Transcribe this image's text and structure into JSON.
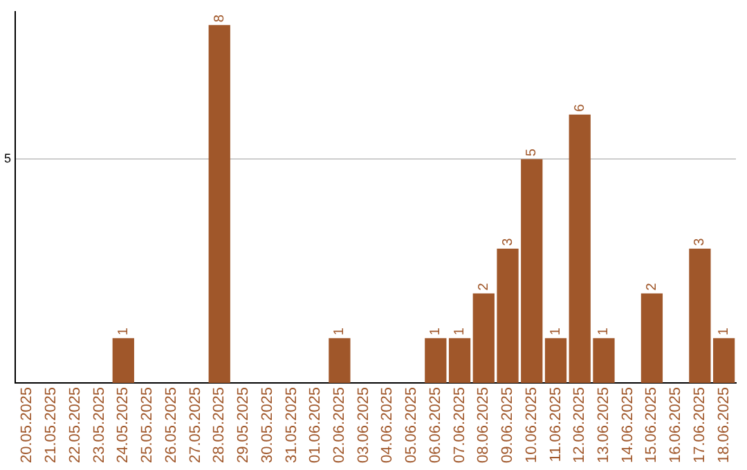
{
  "chart_data": {
    "type": "bar",
    "categories": [
      "20.05.2025",
      "21.05.2025",
      "22.05.2025",
      "23.05.2025",
      "24.05.2025",
      "25.05.2025",
      "26.05.2025",
      "27.05.2025",
      "28.05.2025",
      "29.05.2025",
      "30.05.2025",
      "31.05.2025",
      "01.06.2025",
      "02.06.2025",
      "03.06.2025",
      "04.06.2025",
      "05.06.2025",
      "06.06.2025",
      "07.06.2025",
      "08.06.2025",
      "09.06.2025",
      "10.06.2025",
      "11.06.2025",
      "12.06.2025",
      "13.06.2025",
      "14.06.2025",
      "15.06.2025",
      "16.06.2025",
      "17.06.2025",
      "18.06.2025"
    ],
    "values": [
      0,
      0,
      0,
      0,
      1,
      0,
      0,
      0,
      8,
      0,
      0,
      0,
      0,
      1,
      0,
      0,
      0,
      1,
      1,
      2,
      3,
      5,
      1,
      6,
      1,
      0,
      2,
      0,
      3,
      1
    ],
    "value_labels": [
      null,
      null,
      null,
      null,
      "1",
      null,
      null,
      null,
      "8",
      null,
      null,
      null,
      null,
      "1",
      null,
      null,
      null,
      "1",
      "1",
      "2",
      "3",
      "5",
      "1",
      "6",
      "1",
      null,
      "2",
      null,
      "3",
      "1"
    ],
    "color": "#a0572a",
    "ylim": [
      0,
      8.3
    ],
    "yticks": [
      5
    ],
    "grid": "y",
    "legend": false
  }
}
